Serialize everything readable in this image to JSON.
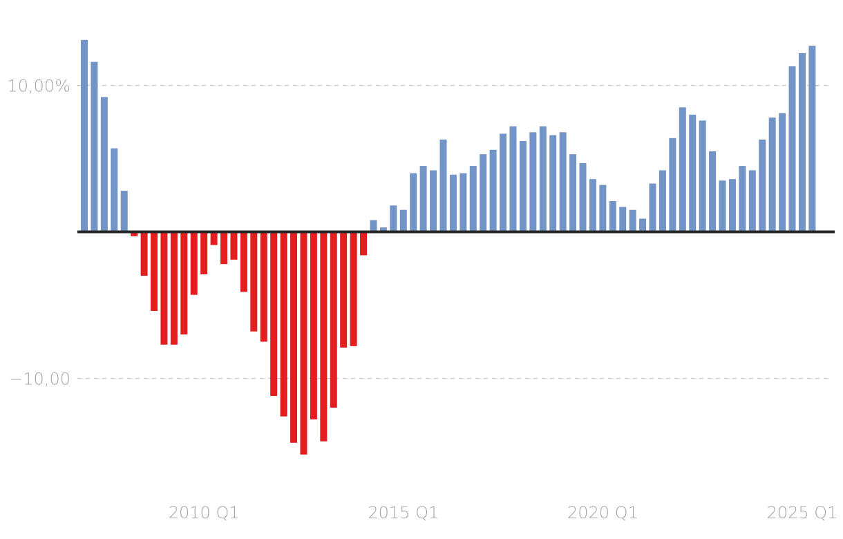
{
  "chart_data": {
    "type": "bar",
    "title": "",
    "xlabel": "",
    "ylabel": "",
    "ylim": [
      -17,
      13.5
    ],
    "grid": "horizontal dashed",
    "legend": "none",
    "colors": {
      "positive": "#7294c6",
      "negative": "#e41d1f",
      "zero_line": "#262626",
      "grid": "#c8c8c8",
      "tick_text": "#a6a6a6"
    },
    "y_ticks": [
      {
        "value": 10,
        "label": "10,00%"
      },
      {
        "value": -10,
        "label": "−10,00"
      }
    ],
    "x_ticks": [
      {
        "label": "2010 Q1",
        "index": 12
      },
      {
        "label": "2015 Q1",
        "index": 32
      },
      {
        "label": "2020 Q1",
        "index": 52
      },
      {
        "label": "2025 Q1",
        "index": 72
      }
    ],
    "values": [
      13.1,
      11.6,
      9.2,
      5.7,
      2.8,
      -0.3,
      -3.0,
      -5.4,
      -7.7,
      -7.7,
      -7.0,
      -4.3,
      -2.9,
      -0.9,
      -2.2,
      -1.9,
      -4.1,
      -6.8,
      -7.5,
      -11.2,
      -12.6,
      -14.4,
      -15.2,
      -12.8,
      -14.3,
      -12.0,
      -7.9,
      -7.8,
      -1.6,
      0.8,
      0.3,
      1.8,
      1.5,
      4.0,
      4.5,
      4.2,
      6.3,
      3.9,
      4.0,
      4.5,
      5.3,
      5.6,
      6.7,
      7.2,
      6.2,
      6.8,
      7.2,
      6.6,
      6.8,
      5.3,
      4.7,
      3.6,
      3.2,
      2.1,
      1.7,
      1.5,
      0.9,
      3.3,
      4.2,
      6.4,
      8.5,
      8.0,
      7.6,
      5.5,
      3.5,
      3.6,
      4.5,
      4.2,
      6.3,
      7.8,
      8.1,
      11.3,
      12.2,
      12.7
    ]
  }
}
